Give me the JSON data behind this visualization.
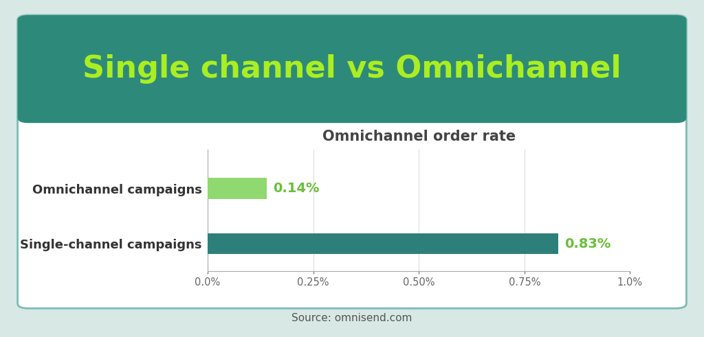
{
  "title": "Single channel vs Omnichannel",
  "subtitle": "Omnichannel order rate",
  "categories": [
    "Single-channel campaigns",
    "Omnichannel campaigns"
  ],
  "values": [
    0.0014,
    0.0083
  ],
  "bar_colors": [
    "#90d870",
    "#2d7f7a"
  ],
  "value_labels": [
    "0.14%",
    "0.83%"
  ],
  "value_label_colors": [
    "#6abf3a",
    "#6abf3a"
  ],
  "xlim": [
    0,
    0.01
  ],
  "xticks": [
    0.0,
    0.0025,
    0.005,
    0.0075,
    0.01
  ],
  "xtick_labels": [
    "0.0%",
    "0.25%",
    "0.50%",
    "0.75%",
    "1.0%"
  ],
  "source_text": "Source: omnisend.com",
  "title_color": "#aaee22",
  "header_bg_color": "#2d8a7a",
  "card_bg_color": "#ffffff",
  "outer_bg_color": "#d8e8e5",
  "card_border_color": "#7bbcb5",
  "subtitle_color": "#444444",
  "category_label_color": "#333333",
  "title_fontsize": 32,
  "subtitle_fontsize": 15,
  "category_fontsize": 13,
  "value_label_fontsize": 14,
  "source_fontsize": 11,
  "grid_color": "#dddddd",
  "spine_color": "#aaaaaa"
}
